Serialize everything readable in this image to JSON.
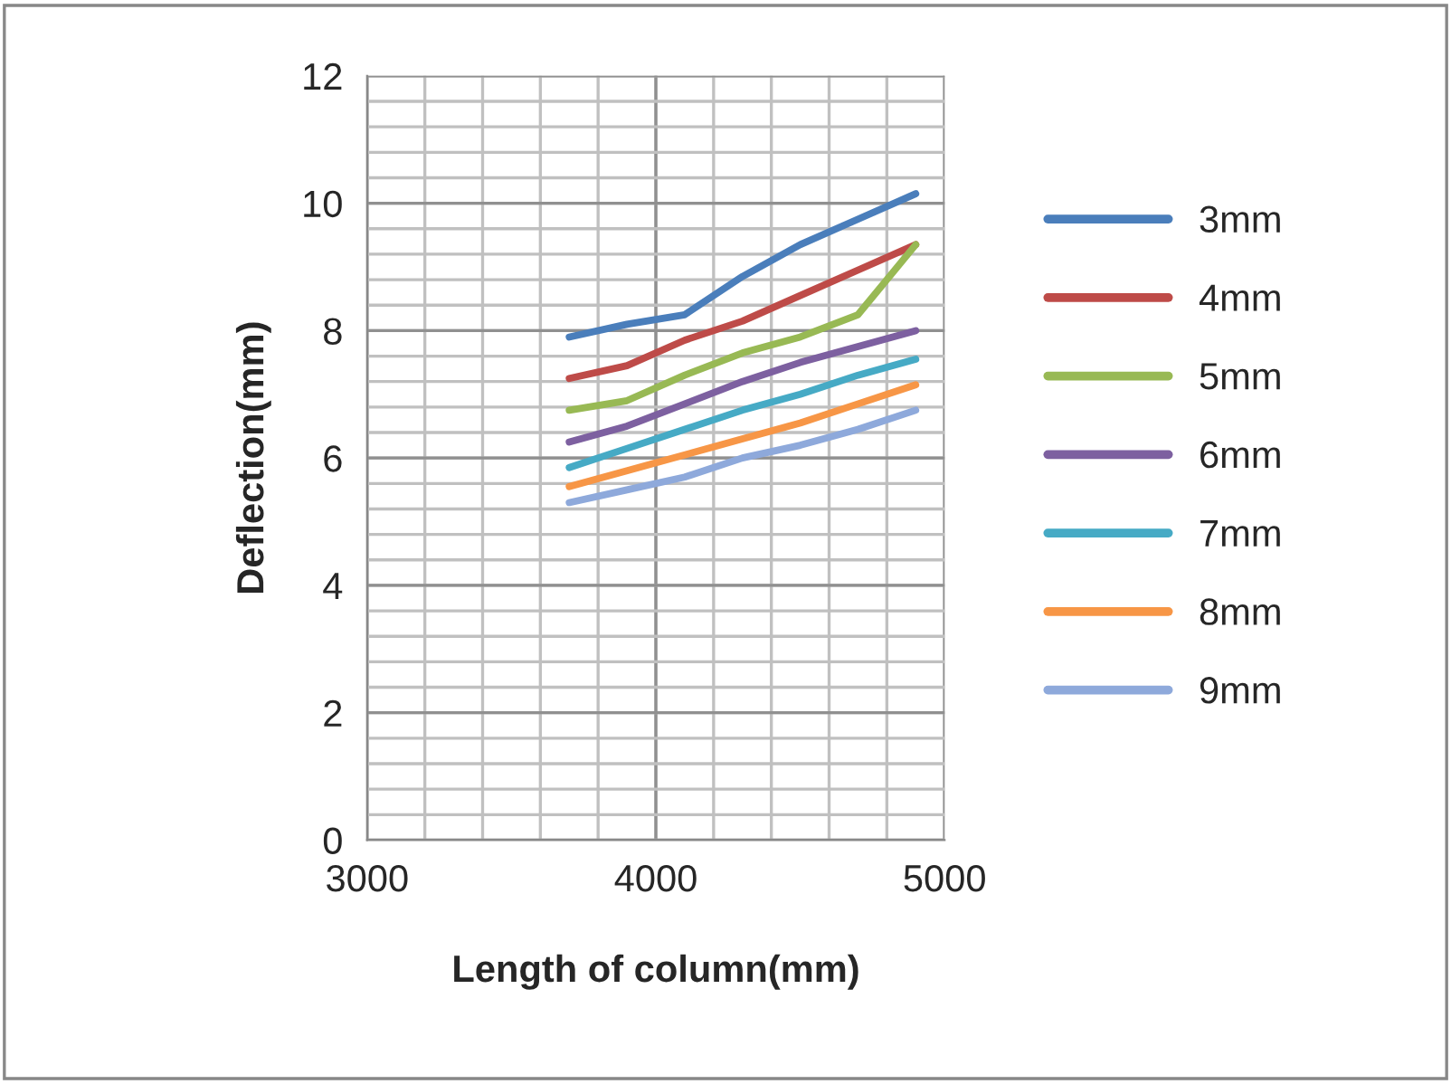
{
  "chart_data": {
    "type": "line",
    "xlabel": "Length of column(mm)",
    "ylabel": "Deflection(mm)",
    "x": [
      3700,
      3900,
      4100,
      4300,
      4500,
      4700,
      4900
    ],
    "series": [
      {
        "name": "3mm",
        "color": "#4a7ebb",
        "values": [
          7.9,
          8.1,
          8.25,
          8.85,
          9.35,
          9.75,
          10.15
        ]
      },
      {
        "name": "4mm",
        "color": "#be4b48",
        "values": [
          7.25,
          7.45,
          7.85,
          8.15,
          8.55,
          8.95,
          9.35
        ]
      },
      {
        "name": "5mm",
        "color": "#98b954",
        "values": [
          6.75,
          6.9,
          7.3,
          7.65,
          7.9,
          8.25,
          9.35
        ]
      },
      {
        "name": "6mm",
        "color": "#7d60a0",
        "values": [
          6.25,
          6.5,
          6.85,
          7.2,
          7.5,
          7.75,
          8.0
        ]
      },
      {
        "name": "7mm",
        "color": "#46aac5",
        "values": [
          5.85,
          6.15,
          6.45,
          6.75,
          7.0,
          7.3,
          7.55
        ]
      },
      {
        "name": "8mm",
        "color": "#f79646",
        "values": [
          5.55,
          5.8,
          6.05,
          6.3,
          6.55,
          6.85,
          7.15
        ]
      },
      {
        "name": "9mm",
        "color": "#8ea9db",
        "values": [
          5.3,
          5.5,
          5.7,
          6.0,
          6.2,
          6.45,
          6.75
        ]
      }
    ],
    "xlim": [
      3000,
      5000
    ],
    "xticks": [
      3000,
      4000,
      5000
    ],
    "ylim": [
      0,
      12
    ],
    "yticks": [
      0,
      2,
      4,
      6,
      8,
      10,
      12
    ],
    "grid": true,
    "legend": "right",
    "marker": "none",
    "line_style": "solid"
  }
}
